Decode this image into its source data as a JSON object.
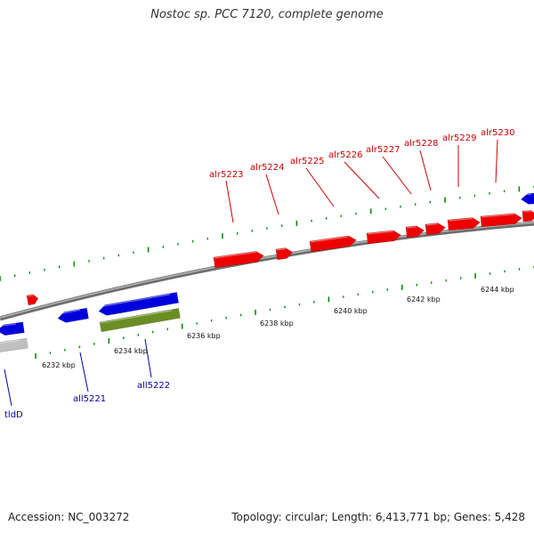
{
  "title": "Nostoc sp. PCC 7120, complete genome",
  "footer": {
    "accession": "Accession: NC_003272",
    "summary": "Topology: circular; Length: 6,413,771 bp; Genes: 5,428"
  },
  "colors": {
    "forward_gene": "#ee0000",
    "reverse_gene": "#0000dd",
    "rna_gene": "#6b8e23",
    "other_feature": "#c0c0c0",
    "backbone": "#808080",
    "tick": "#009000",
    "forward_label": "#cc0000",
    "reverse_label": "#0000aa"
  },
  "scale_labels": [
    "6232 kbp",
    "6234 kbp",
    "6236 kbp",
    "6238 kbp",
    "6240 kbp",
    "6242 kbp",
    "6244 kbp"
  ],
  "forward_gene_labels": [
    "alr5223",
    "alr5224",
    "alr5225",
    "alr5226",
    "alr5227",
    "alr5228",
    "alr5229",
    "alr5230"
  ],
  "reverse_gene_labels": [
    "tldD",
    "all5221",
    "all5222"
  ]
}
